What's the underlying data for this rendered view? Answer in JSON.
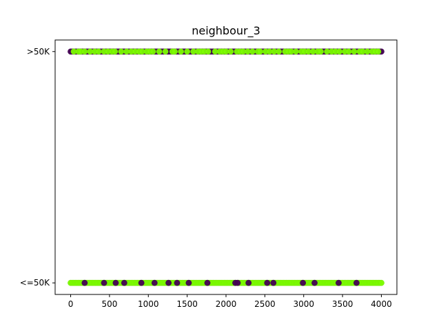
{
  "chart_data": {
    "type": "scatter",
    "title": "neighbour_3",
    "xlabel": "",
    "ylabel": "",
    "xlim": [
      -200,
      4200
    ],
    "ylim": [
      -0.05,
      1.05
    ],
    "x_ticks": [
      0,
      500,
      1000,
      1500,
      2000,
      2500,
      3000,
      3500,
      4000
    ],
    "x_tick_labels": [
      "0",
      "500",
      "1000",
      "1500",
      "2000",
      "2500",
      "3000",
      "3500",
      "4000"
    ],
    "y_ticks": [
      0,
      1
    ],
    "y_tick_labels": [
      "<=50K",
      ">50K"
    ],
    "grid": false,
    "legend": "none",
    "x_range": [
      0,
      4000
    ],
    "series": [
      {
        "color": "#7cfc00",
        "y": 0,
        "x_points": [
          0,
          20,
          40,
          60,
          80,
          100,
          120,
          140,
          160,
          180,
          200,
          220,
          240,
          260,
          280,
          300,
          320,
          340,
          360,
          380,
          400,
          420,
          440,
          460,
          480,
          500,
          520,
          540,
          560,
          580,
          600,
          620,
          640,
          660,
          680,
          700,
          720,
          740,
          760,
          780,
          800,
          820,
          840,
          860,
          880,
          900,
          920,
          940,
          960,
          980,
          1000,
          1020,
          1040,
          1060,
          1080,
          1100,
          1120,
          1140,
          1160,
          1180,
          1200,
          1220,
          1240,
          1260,
          1280,
          1300,
          1320,
          1340,
          1360,
          1380,
          1400,
          1420,
          1440,
          1460,
          1480,
          1500,
          1520,
          1540,
          1560,
          1580,
          1600,
          1620,
          1640,
          1660,
          1680,
          1700,
          1720,
          1740,
          1760,
          1780,
          1800,
          1820,
          1840,
          1860,
          1880,
          1900,
          1920,
          1940,
          1960,
          1980,
          2000,
          2020,
          2040,
          2060,
          2080,
          2100,
          2120,
          2140,
          2160,
          2180,
          2200,
          2220,
          2240,
          2260,
          2280,
          2300,
          2320,
          2340,
          2360,
          2380,
          2400,
          2420,
          2440,
          2460,
          2480,
          2500,
          2520,
          2540,
          2560,
          2580,
          2600,
          2620,
          2640,
          2660,
          2680,
          2700,
          2720,
          2740,
          2760,
          2780,
          2800,
          2820,
          2840,
          2860,
          2880,
          2900,
          2920,
          2940,
          2960,
          2980,
          3000,
          3020,
          3040,
          3060,
          3080,
          3100,
          3120,
          3140,
          3160,
          3180,
          3200,
          3220,
          3240,
          3260,
          3280,
          3300,
          3320,
          3340,
          3360,
          3380,
          3400,
          3420,
          3440,
          3460,
          3480,
          3500,
          3520,
          3540,
          3560,
          3580,
          3600,
          3620,
          3640,
          3660,
          3680,
          3700,
          3720,
          3740,
          3760,
          3780,
          3800,
          3820,
          3840,
          3860,
          3880,
          3900,
          3920,
          3940,
          3960,
          3980,
          4000
        ]
      },
      {
        "color": "#440154",
        "y": 0,
        "x_points": [
          180,
          430,
          580,
          690,
          910,
          1080,
          1260,
          1370,
          1520,
          1760,
          2120,
          2150,
          2290,
          2530,
          2610,
          2990,
          3140,
          3450,
          3680
        ]
      },
      {
        "color": "#440154",
        "y": 1,
        "x_points": [
          0,
          20,
          40,
          60,
          80,
          100,
          120,
          140,
          160,
          180,
          200,
          220,
          240,
          260,
          280,
          300,
          320,
          340,
          360,
          380,
          400,
          420,
          440,
          460,
          480,
          500,
          520,
          540,
          560,
          580,
          600,
          620,
          640,
          660,
          680,
          700,
          720,
          740,
          760,
          780,
          800,
          820,
          840,
          860,
          880,
          900,
          920,
          940,
          960,
          980,
          1000,
          1020,
          1040,
          1060,
          1080,
          1100,
          1120,
          1140,
          1160,
          1180,
          1200,
          1220,
          1240,
          1260,
          1280,
          1300,
          1320,
          1340,
          1360,
          1380,
          1400,
          1420,
          1440,
          1460,
          1480,
          1500,
          1520,
          1540,
          1560,
          1580,
          1600,
          1620,
          1640,
          1660,
          1680,
          1700,
          1720,
          1740,
          1760,
          1780,
          1800,
          1820,
          1840,
          1860,
          1880,
          1900,
          1920,
          1940,
          1960,
          1980,
          2000,
          2020,
          2040,
          2060,
          2080,
          2100,
          2120,
          2140,
          2160,
          2180,
          2200,
          2220,
          2240,
          2260,
          2280,
          2300,
          2320,
          2340,
          2360,
          2380,
          2400,
          2420,
          2440,
          2460,
          2480,
          2500,
          2520,
          2540,
          2560,
          2580,
          2600,
          2620,
          2640,
          2660,
          2680,
          2700,
          2720,
          2740,
          2760,
          2780,
          2800,
          2820,
          2840,
          2860,
          2880,
          2900,
          2920,
          2940,
          2960,
          2980,
          3000,
          3020,
          3040,
          3060,
          3080,
          3100,
          3120,
          3140,
          3160,
          3180,
          3200,
          3220,
          3240,
          3260,
          3280,
          3300,
          3320,
          3340,
          3360,
          3380,
          3400,
          3420,
          3440,
          3460,
          3480,
          3500,
          3520,
          3540,
          3560,
          3580,
          3600,
          3620,
          3640,
          3660,
          3680,
          3700,
          3720,
          3740,
          3760,
          3780,
          3800,
          3820,
          3840,
          3860,
          3880,
          3900,
          3920,
          3940,
          3960,
          3980,
          4000
        ]
      },
      {
        "color": "#7cfc00",
        "y": 1,
        "x_points": [
          40,
          100,
          130,
          180,
          250,
          310,
          360,
          430,
          480,
          530,
          570,
          650,
          720,
          780,
          830,
          880,
          920,
          980,
          1020,
          1060,
          1140,
          1220,
          1310,
          1340,
          1420,
          1500,
          1580,
          1640,
          1680,
          1720,
          1770,
          1860,
          1920,
          1960,
          2000,
          2060,
          2140,
          2180,
          2220,
          2280,
          2340,
          2410,
          2440,
          2510,
          2560,
          2620,
          2680,
          2760,
          2800,
          2840,
          2900,
          2970,
          3010,
          3060,
          3120,
          3180,
          3220,
          3300,
          3360,
          3410,
          3460,
          3530,
          3580,
          3650,
          3720,
          3760,
          3820,
          3880,
          3920,
          3960
        ]
      }
    ]
  }
}
